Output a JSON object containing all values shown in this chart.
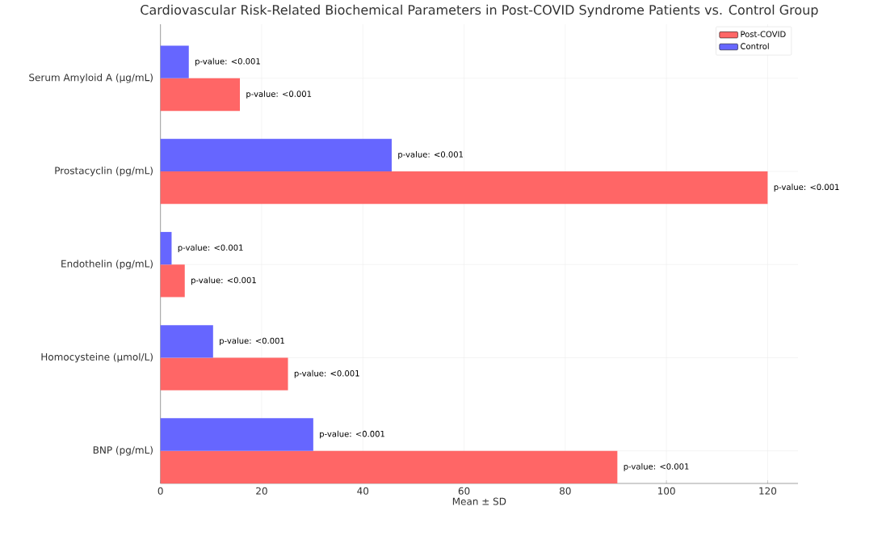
{
  "chart_data": {
    "type": "bar",
    "orientation": "horizontal",
    "title": "Cardiovascular Risk-Related Biochemical Parameters in Post-COVID Syndrome Patients vs. Control Group",
    "xlabel": "Mean ± SD",
    "categories": [
      "Serum Amyloid A (µg/mL)",
      "Prostacyclin (pg/mL)",
      "Endothelin (pg/mL)",
      "Homocysteine (µmol/L)",
      "BNP (pg/mL)"
    ],
    "series": [
      {
        "name": "Post-COVID",
        "color": "#ff6666",
        "values": [
          15.7,
          120,
          4.8,
          25.2,
          90.3
        ],
        "value_labels": [
          "p-value: <0.001",
          "p-value: <0.001",
          "p-value: <0.001",
          "p-value: <0.001",
          "p-value: <0.001"
        ]
      },
      {
        "name": "Control",
        "color": "#6666ff",
        "values": [
          5.6,
          45.7,
          2.2,
          10.4,
          30.2
        ],
        "value_labels": [
          "p-value: <0.001",
          "p-value: <0.001",
          "p-value: <0.001",
          "p-value: <0.001",
          "p-value: <0.001"
        ]
      }
    ],
    "xlim": [
      0,
      126
    ],
    "xticks": [
      0,
      20,
      40,
      60,
      80,
      100,
      120
    ],
    "legend": "top right",
    "grid": true
  }
}
